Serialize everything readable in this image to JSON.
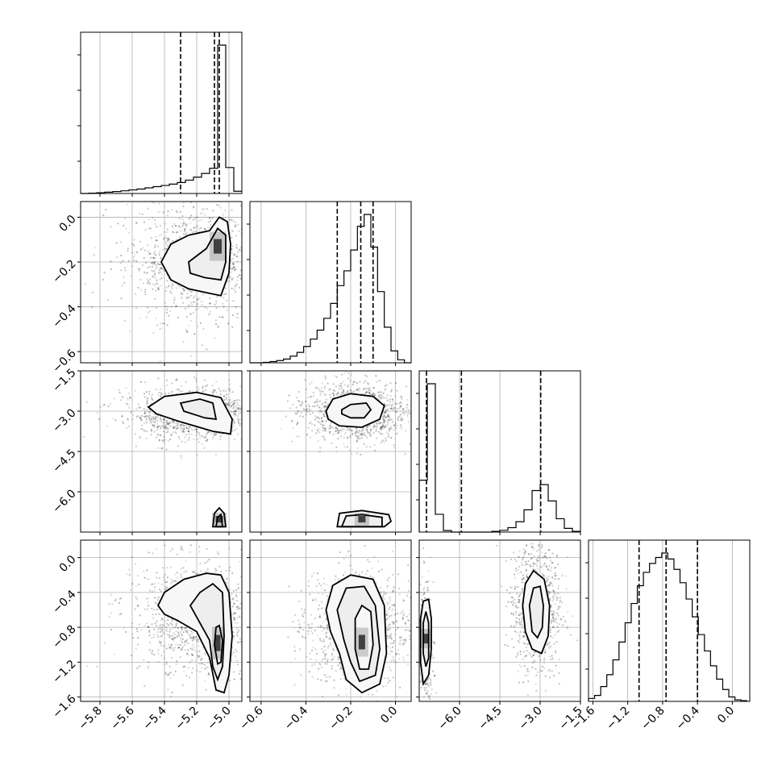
{
  "chart_data": {
    "type": "corner",
    "params": [
      {
        "ticks": [
          -5.8,
          -5.6,
          -5.4,
          -5.2,
          -5.0
        ],
        "tick_labels": [
          "−5.8",
          "−5.6",
          "−5.4",
          "−5.2",
          "−5.0"
        ],
        "range": [
          -5.92,
          -4.92
        ],
        "hist_edges": [
          -5.92,
          -5.87,
          -5.82,
          -5.77,
          -5.72,
          -5.67,
          -5.62,
          -5.57,
          -5.52,
          -5.47,
          -5.42,
          -5.37,
          -5.32,
          -5.27,
          -5.22,
          -5.17,
          -5.12,
          -5.07,
          -5.02,
          -4.97,
          -4.92
        ],
        "hist_counts": [
          0,
          0.2,
          0.5,
          0.9,
          1.3,
          1.8,
          2.4,
          3.0,
          3.8,
          4.6,
          5.4,
          6.3,
          7.4,
          9.0,
          11.0,
          13.5,
          17.0,
          100,
          17.5,
          1.5
        ],
        "quantiles": [
          -5.3,
          -5.09,
          -5.06
        ]
      },
      {
        "ticks": [
          -0.6,
          -0.4,
          -0.2,
          0.0
        ],
        "tick_labels": [
          "−0.6",
          "−0.4",
          "−0.2",
          "0.0"
        ],
        "range": [
          -0.65,
          0.07
        ],
        "hist_edges": [
          -0.65,
          -0.62,
          -0.59,
          -0.56,
          -0.53,
          -0.5,
          -0.47,
          -0.44,
          -0.41,
          -0.38,
          -0.35,
          -0.32,
          -0.29,
          -0.26,
          -0.23,
          -0.2,
          -0.17,
          -0.14,
          -0.11,
          -0.08,
          -0.05,
          -0.02,
          0.01,
          0.04,
          0.07
        ],
        "hist_counts": [
          0,
          0,
          0.3,
          0.8,
          1.5,
          2.5,
          4.5,
          7,
          11,
          16,
          22,
          30,
          40,
          52,
          62,
          76,
          92,
          100,
          78,
          48,
          24,
          8,
          2,
          0
        ],
        "quantiles": [
          -0.26,
          -0.155,
          -0.1
        ]
      },
      {
        "ticks": [
          -6.0,
          -4.5,
          -3.0,
          -1.5
        ],
        "tick_labels": [
          "−6.0",
          "−4.5",
          "−3.0",
          "−1.5"
        ],
        "range": [
          -7.5,
          -1.5
        ],
        "hist_edges": [
          -7.5,
          -7.2,
          -6.9,
          -6.6,
          -6.3,
          -6.0,
          -5.7,
          -5.4,
          -5.1,
          -4.8,
          -4.5,
          -4.2,
          -3.9,
          -3.6,
          -3.3,
          -3.0,
          -2.7,
          -2.4,
          -2.1,
          -1.8,
          -1.5
        ],
        "hist_counts": [
          35,
          100,
          12,
          1,
          0,
          0,
          0,
          0,
          0,
          0.5,
          1.2,
          3,
          7,
          15,
          28,
          32,
          21,
          9,
          2.5,
          0.5
        ],
        "quantiles": [
          -7.23,
          -5.93,
          -2.98
        ]
      },
      {
        "ticks": [
          -1.6,
          -1.2,
          -0.8,
          -0.4,
          0.0
        ],
        "tick_labels": [
          "−1.6",
          "−1.2",
          "−0.8",
          "−0.4",
          "0.0"
        ],
        "range": [
          -1.65,
          0.2
        ],
        "hist_edges": [
          -1.65,
          -1.58,
          -1.51,
          -1.44,
          -1.37,
          -1.3,
          -1.23,
          -1.16,
          -1.09,
          -1.02,
          -0.95,
          -0.88,
          -0.81,
          -0.74,
          -0.67,
          -0.6,
          -0.53,
          -0.46,
          -0.39,
          -0.32,
          -0.25,
          -0.18,
          -0.11,
          -0.04,
          0.03,
          0.1,
          0.17
        ],
        "hist_counts": [
          2,
          4,
          10,
          18,
          28,
          40,
          53,
          66,
          78,
          87,
          93,
          97,
          100,
          96,
          89,
          80,
          69,
          57,
          45,
          34,
          24,
          15,
          8,
          3,
          1,
          0.5
        ],
        "quantiles": [
          -1.07,
          -0.76,
          -0.4
        ]
      }
    ],
    "pairs": [
      {
        "row": 1,
        "col": 0,
        "contours": [
          [
            [
              -5.42,
              -0.2
            ],
            [
              -5.36,
              -0.12
            ],
            [
              -5.25,
              -0.08
            ],
            [
              -5.12,
              -0.06
            ],
            [
              -5.06,
              0.0
            ],
            [
              -5.01,
              -0.02
            ],
            [
              -4.99,
              -0.12
            ],
            [
              -5.0,
              -0.25
            ],
            [
              -5.05,
              -0.35
            ],
            [
              -5.12,
              -0.34
            ],
            [
              -5.25,
              -0.32
            ],
            [
              -5.36,
              -0.28
            ]
          ],
          [
            [
              -5.25,
              -0.2
            ],
            [
              -5.14,
              -0.14
            ],
            [
              -5.07,
              -0.05
            ],
            [
              -5.02,
              -0.08
            ],
            [
              -5.02,
              -0.2
            ],
            [
              -5.05,
              -0.28
            ],
            [
              -5.15,
              -0.27
            ],
            [
              -5.24,
              -0.25
            ]
          ]
        ],
        "blobs": [
          [
            -5.07,
            -0.13,
            10,
            18
          ]
        ],
        "cloud": {
          "cx": -5.2,
          "cy": -0.2,
          "sx": 0.22,
          "sy": 0.13,
          "n": 1100
        }
      },
      {
        "row": 2,
        "col": 0,
        "contours": [
          [
            [
              -5.5,
              -2.85
            ],
            [
              -5.4,
              -2.45
            ],
            [
              -5.2,
              -2.3
            ],
            [
              -5.05,
              -2.5
            ],
            [
              -4.98,
              -3.3
            ],
            [
              -4.99,
              -3.85
            ],
            [
              -5.1,
              -3.75
            ],
            [
              -5.3,
              -3.4
            ],
            [
              -5.45,
              -3.1
            ]
          ],
          [
            [
              -5.3,
              -2.7
            ],
            [
              -5.18,
              -2.55
            ],
            [
              -5.1,
              -2.7
            ],
            [
              -5.08,
              -3.3
            ],
            [
              -5.15,
              -3.25
            ],
            [
              -5.28,
              -3.0
            ]
          ],
          [
            [
              -5.1,
              -7.3
            ],
            [
              -5.09,
              -6.8
            ],
            [
              -5.06,
              -6.6
            ],
            [
              -5.03,
              -6.8
            ],
            [
              -5.02,
              -7.3
            ]
          ],
          [
            [
              -5.08,
              -7.3
            ],
            [
              -5.07,
              -6.95
            ],
            [
              -5.05,
              -6.85
            ],
            [
              -5.04,
              -7.3
            ]
          ]
        ],
        "blobs": [
          [
            -5.06,
            -7.02,
            9,
            8
          ]
        ],
        "cloud": {
          "cx": -5.22,
          "cy": -3.1,
          "sx": 0.22,
          "sy": 0.5,
          "n": 1100
        }
      },
      {
        "row": 2,
        "col": 1,
        "contours": [
          [
            [
              -0.31,
              -3.0
            ],
            [
              -0.28,
              -2.55
            ],
            [
              -0.2,
              -2.35
            ],
            [
              -0.1,
              -2.45
            ],
            [
              -0.05,
              -2.8
            ],
            [
              -0.07,
              -3.3
            ],
            [
              -0.15,
              -3.6
            ],
            [
              -0.25,
              -3.55
            ],
            [
              -0.3,
              -3.3
            ]
          ],
          [
            [
              -0.24,
              -2.95
            ],
            [
              -0.2,
              -2.75
            ],
            [
              -0.13,
              -2.7
            ],
            [
              -0.11,
              -2.95
            ],
            [
              -0.14,
              -3.25
            ],
            [
              -0.2,
              -3.25
            ],
            [
              -0.24,
              -3.1
            ]
          ],
          [
            [
              -0.26,
              -7.3
            ],
            [
              -0.25,
              -6.8
            ],
            [
              -0.15,
              -6.7
            ],
            [
              -0.03,
              -6.85
            ],
            [
              -0.02,
              -7.1
            ],
            [
              -0.05,
              -7.3
            ]
          ],
          [
            [
              -0.24,
              -7.3
            ],
            [
              -0.22,
              -6.9
            ],
            [
              -0.15,
              -6.85
            ],
            [
              -0.06,
              -6.95
            ],
            [
              -0.06,
              -7.3
            ]
          ]
        ],
        "blobs": [
          [
            -0.15,
            -7.02,
            9,
            8
          ]
        ],
        "cloud": {
          "cx": -0.18,
          "cy": -3.0,
          "sx": 0.12,
          "sy": 0.55,
          "n": 1100
        }
      },
      {
        "row": 3,
        "col": 0,
        "contours": [
          [
            [
              -5.44,
              -0.55
            ],
            [
              -5.4,
              -0.4
            ],
            [
              -5.28,
              -0.25
            ],
            [
              -5.14,
              -0.18
            ],
            [
              -5.05,
              -0.2
            ],
            [
              -5.0,
              -0.4
            ],
            [
              -4.98,
              -0.9
            ],
            [
              -5.0,
              -1.35
            ],
            [
              -5.03,
              -1.55
            ],
            [
              -5.08,
              -1.52
            ],
            [
              -5.12,
              -1.15
            ],
            [
              -5.2,
              -0.85
            ],
            [
              -5.32,
              -0.72
            ],
            [
              -5.4,
              -0.65
            ]
          ],
          [
            [
              -5.24,
              -0.55
            ],
            [
              -5.18,
              -0.4
            ],
            [
              -5.1,
              -0.3
            ],
            [
              -5.04,
              -0.4
            ],
            [
              -5.03,
              -0.9
            ],
            [
              -5.04,
              -1.25
            ],
            [
              -5.07,
              -1.4
            ],
            [
              -5.1,
              -1.25
            ],
            [
              -5.12,
              -0.95
            ],
            [
              -5.18,
              -0.75
            ]
          ],
          [
            [
              -5.09,
              -1.0
            ],
            [
              -5.08,
              -0.8
            ],
            [
              -5.06,
              -0.78
            ],
            [
              -5.04,
              -0.95
            ],
            [
              -5.05,
              -1.2
            ],
            [
              -5.07,
              -1.22
            ]
          ]
        ],
        "blobs": [
          [
            -5.07,
            -0.98,
            7,
            20
          ]
        ],
        "cloud": {
          "cx": -5.2,
          "cy": -0.7,
          "sx": 0.2,
          "sy": 0.32,
          "n": 1100
        }
      },
      {
        "row": 3,
        "col": 1,
        "contours": [
          [
            [
              -0.31,
              -0.6
            ],
            [
              -0.28,
              -0.32
            ],
            [
              -0.2,
              -0.2
            ],
            [
              -0.1,
              -0.25
            ],
            [
              -0.05,
              -0.55
            ],
            [
              -0.04,
              -1.1
            ],
            [
              -0.07,
              -1.45
            ],
            [
              -0.15,
              -1.55
            ],
            [
              -0.22,
              -1.4
            ],
            [
              -0.25,
              -1.1
            ],
            [
              -0.29,
              -0.85
            ]
          ],
          [
            [
              -0.26,
              -0.6
            ],
            [
              -0.22,
              -0.35
            ],
            [
              -0.14,
              -0.33
            ],
            [
              -0.09,
              -0.55
            ],
            [
              -0.07,
              -1.05
            ],
            [
              -0.09,
              -1.35
            ],
            [
              -0.16,
              -1.42
            ],
            [
              -0.2,
              -1.2
            ],
            [
              -0.23,
              -0.95
            ]
          ],
          [
            [
              -0.18,
              -0.7
            ],
            [
              -0.15,
              -0.55
            ],
            [
              -0.11,
              -0.62
            ],
            [
              -0.1,
              -1.0
            ],
            [
              -0.12,
              -1.28
            ],
            [
              -0.16,
              -1.28
            ],
            [
              -0.18,
              -1.05
            ]
          ]
        ],
        "blobs": [
          [
            -0.15,
            -0.97,
            8,
            18
          ]
        ],
        "cloud": {
          "cx": -0.17,
          "cy": -0.8,
          "sx": 0.12,
          "sy": 0.32,
          "n": 1100
        }
      },
      {
        "row": 3,
        "col": 2,
        "contours": [
          [
            [
              -7.45,
              -0.7
            ],
            [
              -7.35,
              -0.5
            ],
            [
              -7.15,
              -0.48
            ],
            [
              -7.05,
              -0.7
            ],
            [
              -7.05,
              -1.05
            ],
            [
              -7.15,
              -1.35
            ],
            [
              -7.35,
              -1.45
            ],
            [
              -7.45,
              -1.2
            ]
          ],
          [
            [
              -7.35,
              -0.75
            ],
            [
              -7.25,
              -0.62
            ],
            [
              -7.15,
              -0.75
            ],
            [
              -7.15,
              -1.15
            ],
            [
              -7.25,
              -1.25
            ],
            [
              -7.35,
              -1.1
            ]
          ],
          [
            [
              -3.65,
              -0.55
            ],
            [
              -3.55,
              -0.3
            ],
            [
              -3.25,
              -0.15
            ],
            [
              -2.85,
              -0.25
            ],
            [
              -2.65,
              -0.55
            ],
            [
              -2.7,
              -0.9
            ],
            [
              -2.95,
              -1.1
            ],
            [
              -3.3,
              -1.05
            ],
            [
              -3.55,
              -0.85
            ]
          ],
          [
            [
              -3.4,
              -0.55
            ],
            [
              -3.25,
              -0.35
            ],
            [
              -3.0,
              -0.33
            ],
            [
              -2.88,
              -0.55
            ],
            [
              -2.92,
              -0.8
            ],
            [
              -3.1,
              -0.92
            ],
            [
              -3.3,
              -0.85
            ]
          ]
        ],
        "blobs": [
          [
            -7.25,
            -0.93,
            7,
            12
          ]
        ],
        "cloud": {
          "cx": -3.1,
          "cy": -0.6,
          "sx": 0.45,
          "sy": 0.35,
          "n": 900
        },
        "cloud2": {
          "cx": -7.25,
          "cy": -0.95,
          "sx": 0.12,
          "sy": 0.35,
          "n": 350
        }
      }
    ]
  }
}
